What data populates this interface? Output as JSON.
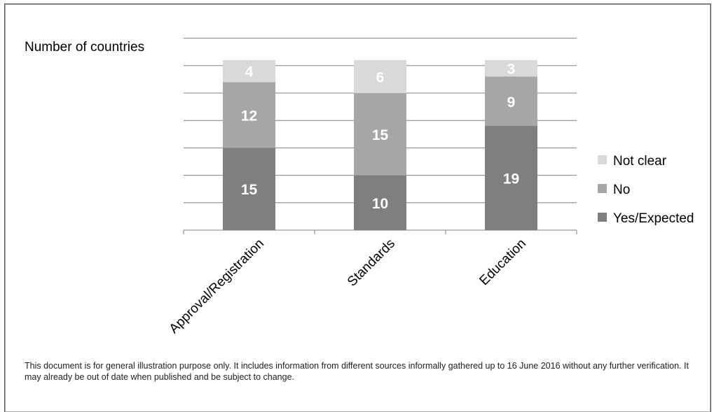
{
  "note": "This document is for general illustration purpose only. It includes information from different sources informally gathered up to 16 June 2016 without any further verification. It may already be out of date when published and be subject to change.",
  "chart_data": {
    "type": "bar",
    "stacked": true,
    "title": "",
    "xlabel": "",
    "ylabel": "Number of countries",
    "ylim": [
      0,
      35
    ],
    "grid": true,
    "legend_position": "right",
    "categories": [
      "Approval/Registration",
      "Standards",
      "Education"
    ],
    "series": [
      {
        "name": "Yes/Expected",
        "values": [
          15,
          10,
          19
        ],
        "color": "#7f7f7f"
      },
      {
        "name": "No",
        "values": [
          12,
          15,
          9
        ],
        "color": "#a6a6a6"
      },
      {
        "name": "Not clear",
        "values": [
          4,
          6,
          3
        ],
        "color": "#d9d9d9"
      }
    ]
  }
}
